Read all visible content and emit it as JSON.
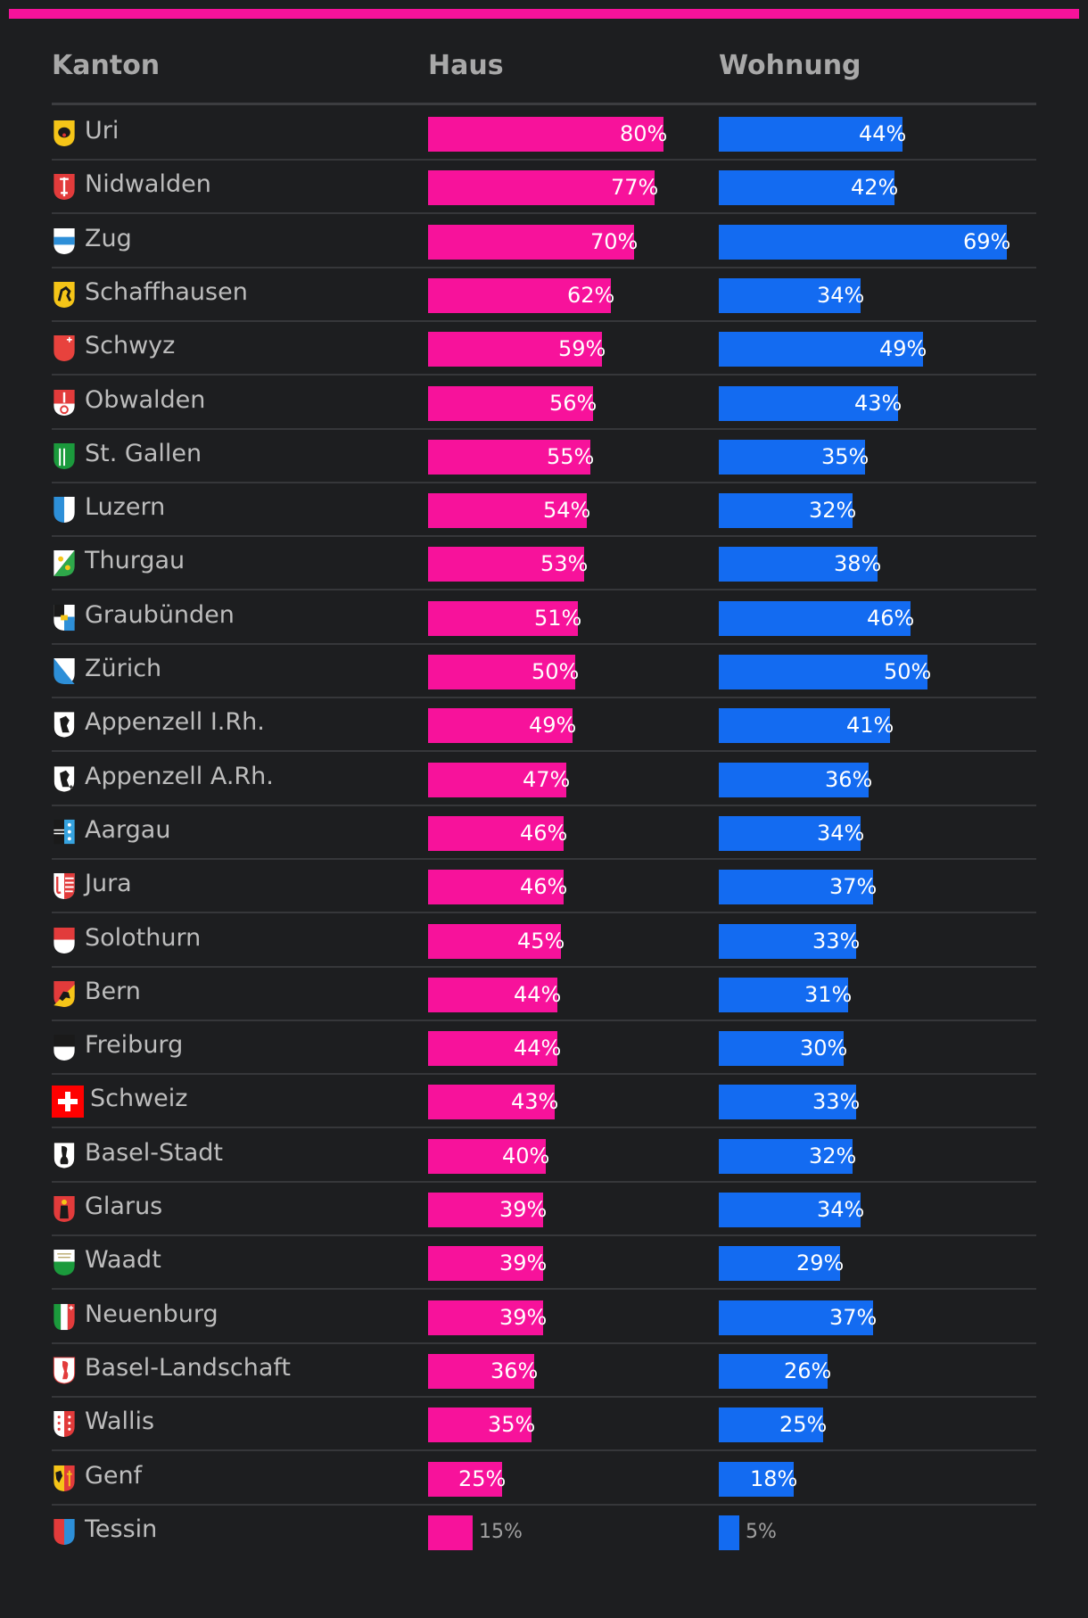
{
  "colors": {
    "haus": "#f7129b",
    "wohnung": "#136bf1",
    "background": "#1d1e20"
  },
  "header": {
    "kanton": "Kanton",
    "haus": "Haus",
    "wohnung": "Wohnung"
  },
  "chart_data": {
    "type": "bar",
    "categories": [
      "Uri",
      "Nidwalden",
      "Zug",
      "Schaffhausen",
      "Schwyz",
      "Obwalden",
      "St. Gallen",
      "Luzern",
      "Thurgau",
      "Graubünden",
      "Zürich",
      "Appenzell I.Rh.",
      "Appenzell A.Rh.",
      "Aargau",
      "Jura",
      "Solothurn",
      "Bern",
      "Freiburg",
      "Schweiz",
      "Basel-Stadt",
      "Glarus",
      "Waadt",
      "Neuenburg",
      "Basel-Landschaft",
      "Wallis",
      "Genf",
      "Tessin"
    ],
    "series": [
      {
        "name": "Haus",
        "values": [
          80,
          77,
          70,
          62,
          59,
          56,
          55,
          54,
          53,
          51,
          50,
          49,
          47,
          46,
          46,
          45,
          44,
          44,
          43,
          40,
          39,
          39,
          39,
          36,
          35,
          25,
          15
        ]
      },
      {
        "name": "Wohnung",
        "values": [
          44,
          42,
          69,
          34,
          49,
          43,
          35,
          32,
          38,
          46,
          50,
          41,
          36,
          34,
          37,
          33,
          31,
          30,
          33,
          32,
          34,
          29,
          37,
          26,
          25,
          18,
          5
        ]
      }
    ],
    "unit": "%",
    "flags": [
      "uri-coat-icon",
      "nidwalden-coat-icon",
      "zug-coat-icon",
      "schaffhausen-coat-icon",
      "schwyz-coat-icon",
      "obwalden-coat-icon",
      "st-gallen-coat-icon",
      "luzern-coat-icon",
      "thurgau-coat-icon",
      "graubuenden-coat-icon",
      "zuerich-coat-icon",
      "appenzell-ir-coat-icon",
      "appenzell-ar-coat-icon",
      "aargau-coat-icon",
      "jura-coat-icon",
      "solothurn-coat-icon",
      "bern-coat-icon",
      "freiburg-coat-icon",
      "swiss-flag-icon",
      "basel-stadt-coat-icon",
      "glarus-coat-icon",
      "waadt-coat-icon",
      "neuenburg-coat-icon",
      "basel-landschaft-coat-icon",
      "wallis-coat-icon",
      "genf-coat-icon",
      "tessin-coat-icon"
    ]
  }
}
